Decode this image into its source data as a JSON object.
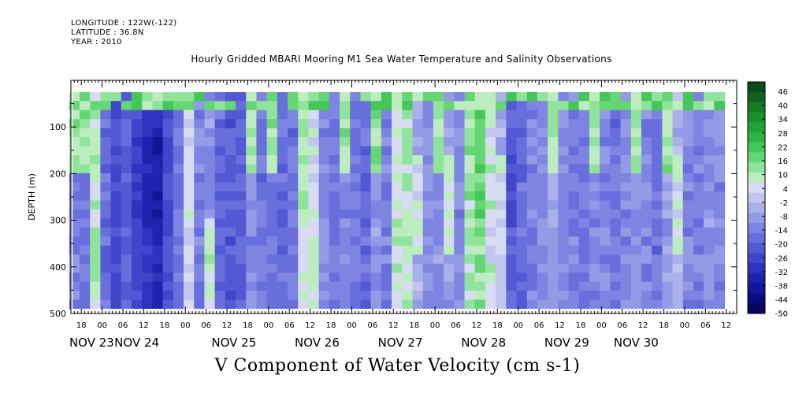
{
  "header": {
    "longitude": "LONGITUDE : 122W(-122)",
    "latitude": "LATITUDE : 36.8N",
    "year": "YEAR : 2010",
    "title": "Hourly Gridded MBARI Mooring M1 Sea Water Temperature and Salinity Observations"
  },
  "chart_data": {
    "type": "heatmap",
    "title": "Hourly Gridded MBARI Mooring M1 Sea Water Temperature and Salinity Observations",
    "xlabel": "V Component of Water Velocity (cm s-1)",
    "ylabel": "DEPTH (m)",
    "units": "cm s-1",
    "x_range_hours": [
      -9,
      183
    ],
    "y_range_depth_m": [
      0,
      500
    ],
    "y_inverted": true,
    "data_depth_range_m": [
      25,
      490
    ],
    "data_start": "NOV 23 21:00",
    "data_end": "NOV 30 12:00",
    "ytick_labels": [
      "100",
      "200",
      "300",
      "400",
      "500"
    ],
    "ytick_values": [
      100,
      200,
      300,
      400,
      500
    ],
    "xtick_hour_labels": [
      "18",
      "00",
      "06",
      "12",
      "18",
      "00",
      "06",
      "12",
      "18",
      "00",
      "06",
      "12",
      "18",
      "00",
      "06",
      "12",
      "18",
      "00",
      "06",
      "12",
      "18",
      "00",
      "06",
      "12",
      "18",
      "00",
      "06",
      "12",
      "18",
      "00",
      "06",
      "12"
    ],
    "date_labels": [
      "NOV 23",
      "NOV 24",
      "NOV 25",
      "NOV 26",
      "NOV 27",
      "NOV 28",
      "NOV 29",
      "NOV 30"
    ],
    "colorbar": {
      "labels": [
        "46",
        "40",
        "34",
        "28",
        "22",
        "16",
        "10",
        "4",
        "-2",
        "-8",
        "-14",
        "-20",
        "-26",
        "-32",
        "-38",
        "-44",
        "-50"
      ],
      "colors": [
        "#0d4a1c",
        "#13601f",
        "#177a25",
        "#1b8f2b",
        "#21a236",
        "#2eb543",
        "#44c658",
        "#66d574",
        "#90e39a",
        "#bcecbf",
        "#d8dcf2",
        "#c2c6ee",
        "#aab0ea",
        "#939ae6",
        "#7d84e2",
        "#686fdc",
        "#5359d4",
        "#4045cb",
        "#2e32bf",
        "#1f22ad",
        "#141597",
        "#0b0c80",
        "#050660"
      ]
    },
    "columns": [
      {
        "hour": -8,
        "v": -14,
        "pattern": "green_top"
      },
      {
        "hour": -5,
        "v": -16,
        "pattern": "green_top"
      },
      {
        "hour": -2,
        "v": 8,
        "pattern": "green_full"
      },
      {
        "hour": 1,
        "v": -18,
        "pattern": "blue"
      },
      {
        "hour": 4,
        "v": -24,
        "pattern": "blue"
      },
      {
        "hour": 7,
        "v": -20,
        "pattern": "blue"
      },
      {
        "hour": 10,
        "v": -26,
        "pattern": "blue_deep"
      },
      {
        "hour": 13,
        "v": -30,
        "pattern": "blue_deep"
      },
      {
        "hour": 16,
        "v": -32,
        "pattern": "blue_deep"
      },
      {
        "hour": 19,
        "v": -24,
        "pattern": "blue"
      },
      {
        "hour": 22,
        "v": -16,
        "pattern": "blue"
      },
      {
        "hour": 25,
        "v": 4,
        "pattern": "green_mid"
      },
      {
        "hour": 28,
        "v": -14,
        "pattern": "blue"
      },
      {
        "hour": 31,
        "v": -10,
        "pattern": "green_bottom"
      },
      {
        "hour": 34,
        "v": -18,
        "pattern": "blue"
      },
      {
        "hour": 37,
        "v": -22,
        "pattern": "blue"
      },
      {
        "hour": 40,
        "v": -20,
        "pattern": "blue"
      },
      {
        "hour": 43,
        "v": -12,
        "pattern": "green_top"
      },
      {
        "hour": 46,
        "v": -16,
        "pattern": "blue"
      },
      {
        "hour": 49,
        "v": -14,
        "pattern": "green_top"
      },
      {
        "hour": 52,
        "v": -18,
        "pattern": "blue"
      },
      {
        "hour": 55,
        "v": -16,
        "pattern": "blue"
      },
      {
        "hour": 58,
        "v": 10,
        "pattern": "green_bottom"
      },
      {
        "hour": 61,
        "v": 4,
        "pattern": "green_bottom"
      },
      {
        "hour": 64,
        "v": -12,
        "pattern": "blue"
      },
      {
        "hour": 67,
        "v": -16,
        "pattern": "blue"
      },
      {
        "hour": 70,
        "v": -12,
        "pattern": "green_top"
      },
      {
        "hour": 73,
        "v": -16,
        "pattern": "blue"
      },
      {
        "hour": 76,
        "v": -18,
        "pattern": "blue"
      },
      {
        "hour": 79,
        "v": -10,
        "pattern": "green_top"
      },
      {
        "hour": 82,
        "v": -14,
        "pattern": "blue"
      },
      {
        "hour": 85,
        "v": 4,
        "pattern": "green_bottom"
      },
      {
        "hour": 88,
        "v": 8,
        "pattern": "green_full"
      },
      {
        "hour": 91,
        "v": -6,
        "pattern": "green_mid"
      },
      {
        "hour": 94,
        "v": -12,
        "pattern": "blue"
      },
      {
        "hour": 97,
        "v": -10,
        "pattern": "green_top"
      },
      {
        "hour": 100,
        "v": -8,
        "pattern": "green_mid"
      },
      {
        "hour": 103,
        "v": -12,
        "pattern": "blue"
      },
      {
        "hour": 106,
        "v": 10,
        "pattern": "green_full"
      },
      {
        "hour": 109,
        "v": 14,
        "pattern": "green_full"
      },
      {
        "hour": 112,
        "v": 6,
        "pattern": "green_full"
      },
      {
        "hour": 115,
        "v": -4,
        "pattern": "green_mid"
      },
      {
        "hour": 118,
        "v": -20,
        "pattern": "blue_deep"
      },
      {
        "hour": 121,
        "v": -18,
        "pattern": "blue"
      },
      {
        "hour": 124,
        "v": -14,
        "pattern": "blue"
      },
      {
        "hour": 127,
        "v": -12,
        "pattern": "blue"
      },
      {
        "hour": 130,
        "v": -8,
        "pattern": "green_top"
      },
      {
        "hour": 133,
        "v": -12,
        "pattern": "blue"
      },
      {
        "hour": 136,
        "v": -14,
        "pattern": "blue"
      },
      {
        "hour": 139,
        "v": -16,
        "pattern": "blue"
      },
      {
        "hour": 142,
        "v": -12,
        "pattern": "green_top"
      },
      {
        "hour": 145,
        "v": -14,
        "pattern": "blue"
      },
      {
        "hour": 148,
        "v": -16,
        "pattern": "blue"
      },
      {
        "hour": 151,
        "v": -12,
        "pattern": "blue"
      },
      {
        "hour": 154,
        "v": -10,
        "pattern": "green_top"
      },
      {
        "hour": 157,
        "v": -14,
        "pattern": "blue"
      },
      {
        "hour": 160,
        "v": -16,
        "pattern": "blue"
      },
      {
        "hour": 163,
        "v": -8,
        "pattern": "green_top"
      },
      {
        "hour": 166,
        "v": -4,
        "pattern": "green_mid"
      },
      {
        "hour": 169,
        "v": -12,
        "pattern": "blue"
      },
      {
        "hour": 172,
        "v": -14,
        "pattern": "blue"
      },
      {
        "hour": 175,
        "v": -10,
        "pattern": "blue"
      },
      {
        "hour": 178,
        "v": -12,
        "pattern": "blue"
      }
    ]
  }
}
